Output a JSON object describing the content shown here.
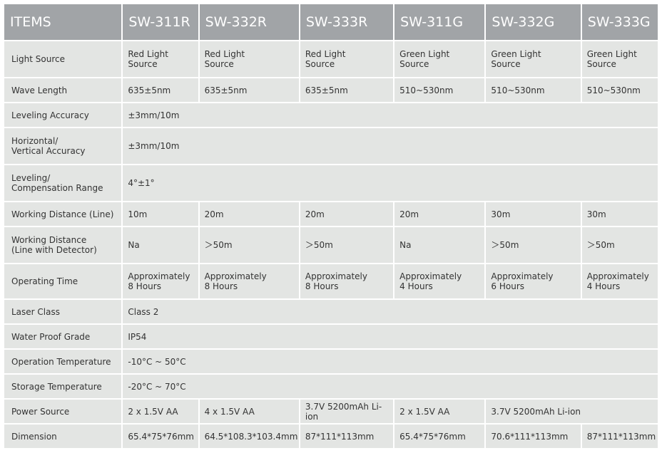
{
  "header": [
    "ITEMS",
    "SW-311R",
    "SW-332R",
    "SW-333R",
    "SW-311G",
    "SW-332G",
    "SW-333G"
  ],
  "rows": [
    {
      "label": "Light Source",
      "h": 50,
      "cells": [
        {
          "v": "Red Light\nSource"
        },
        {
          "v": "Red Light\nSource"
        },
        {
          "v": "Red Light\nSource"
        },
        {
          "v": "Green Light\nSource"
        },
        {
          "v": "Green Light\nSource"
        },
        {
          "v": "Green Light\nSource"
        }
      ]
    },
    {
      "label": "Wave Length",
      "h": 33,
      "cells": [
        {
          "v": "635±5nm"
        },
        {
          "v": "635±5nm"
        },
        {
          "v": "635±5nm"
        },
        {
          "v": "510~530nm"
        },
        {
          "v": "510~530nm"
        },
        {
          "v": "510~530nm"
        }
      ]
    },
    {
      "label": "Leveling Accuracy",
      "h": 33,
      "cells": [
        {
          "v": "±3mm/10m",
          "span": 6
        }
      ]
    },
    {
      "label": "Horizontal/\nVertical Accuracy",
      "h": 50,
      "cells": [
        {
          "v": "±3mm/10m",
          "span": 6
        }
      ]
    },
    {
      "label": "Leveling/\nCompensation Range",
      "h": 50,
      "cells": [
        {
          "v": "4°±1°",
          "span": 6
        }
      ]
    },
    {
      "label": "Working Distance (Line)",
      "h": 33,
      "cells": [
        {
          "v": "10m"
        },
        {
          "v": "20m"
        },
        {
          "v": "20m"
        },
        {
          "v": "20m"
        },
        {
          "v": "30m"
        },
        {
          "v": "30m"
        }
      ]
    },
    {
      "label": "Working Distance\n(Line with Detector)",
      "h": 50,
      "cells": [
        {
          "v": "Na"
        },
        {
          "v": "＞50m"
        },
        {
          "v": "＞50m"
        },
        {
          "v": "Na"
        },
        {
          "v": "＞50m"
        },
        {
          "v": "＞50m"
        }
      ]
    },
    {
      "label": "Operating Time",
      "h": 48,
      "cells": [
        {
          "v": "Approximately\n8 Hours"
        },
        {
          "v": "Approximately\n8 Hours"
        },
        {
          "v": "Approximately\n8 Hours"
        },
        {
          "v": "Approximately\n4 Hours"
        },
        {
          "v": "Approximately\n6 Hours"
        },
        {
          "v": "Approximately\n4 Hours"
        }
      ]
    },
    {
      "label": "Laser Class",
      "h": 33,
      "cells": [
        {
          "v": "Class 2",
          "span": 6
        }
      ]
    },
    {
      "label": "Water Proof Grade",
      "h": 33,
      "cells": [
        {
          "v": "IP54",
          "span": 6
        }
      ]
    },
    {
      "label": "Operation Temperature",
      "h": 33,
      "cells": [
        {
          "v": "-10°C ~ 50°C",
          "span": 6
        }
      ]
    },
    {
      "label": "Storage Temperature",
      "h": 33,
      "cells": [
        {
          "v": "-20°C ~ 70°C",
          "span": 6
        }
      ]
    },
    {
      "label": "Power Source",
      "h": 33,
      "cells": [
        {
          "v": "2 x 1.5V AA"
        },
        {
          "v": "4 x 1.5V AA"
        },
        {
          "v": "3.7V 5200mAh Li-ion"
        },
        {
          "v": "2 x 1.5V AA"
        },
        {
          "v": "3.7V 5200mAh Li-ion",
          "span": 2
        }
      ]
    },
    {
      "label": "Dimension",
      "h": 33,
      "cells": [
        {
          "v": "65.4*75*76mm"
        },
        {
          "v": "64.5*108.3*103.4mm"
        },
        {
          "v": "87*111*113mm"
        },
        {
          "v": "65.4*75*76mm"
        },
        {
          "v": "70.6*111*113mm"
        },
        {
          "v": "87*111*113mm"
        }
      ]
    }
  ]
}
